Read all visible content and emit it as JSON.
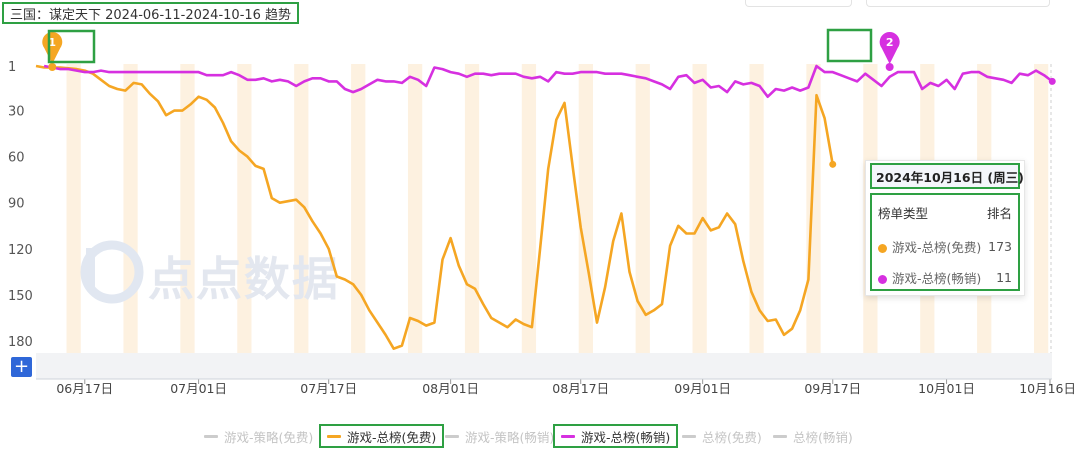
{
  "title": "三国：谋定天下 2024-06-11-2024-10-16 趋势",
  "watermark": "点点数据",
  "plus_label": "+",
  "markers": [
    {
      "label": "1",
      "date": "2024-06-13",
      "rank": 1,
      "color": "#f5a623"
    },
    {
      "label": "2",
      "date": "2024-09-24",
      "rank": 1,
      "color": "#d630e0"
    }
  ],
  "tooltip": {
    "date": "2024年10月16日 (周三)",
    "col_type": "榜单类型",
    "col_rank": "排名",
    "rows": [
      {
        "name": "游戏-总榜(免费)",
        "value": "173",
        "color": "#f5a623"
      },
      {
        "name": "游戏-总榜(畅销)",
        "value": "11",
        "color": "#d630e0"
      }
    ]
  },
  "legend": [
    {
      "name": "游戏-策略(免费)",
      "active": false,
      "color": "#cccccc"
    },
    {
      "name": "游戏-总榜(免费)",
      "active": true,
      "color": "#f5a623"
    },
    {
      "name": "游戏-策略(畅销)",
      "active": false,
      "color": "#cccccc"
    },
    {
      "name": "游戏-总榜(畅销)",
      "active": true,
      "color": "#d630e0"
    },
    {
      "name": "总榜(免费)",
      "active": false,
      "color": "#cccccc"
    },
    {
      "name": "总榜(畅销)",
      "active": false,
      "color": "#cccccc"
    }
  ],
  "chart_data": {
    "type": "line",
    "title": "三国：谋定天下 2024-06-11-2024-10-16 趋势",
    "xlabel": "",
    "ylabel": "",
    "x_start": "2024-06-11",
    "x_end": "2024-10-16",
    "x_ticks": [
      "06月17日",
      "07月01日",
      "07月17日",
      "08月01日",
      "08月17日",
      "09月01日",
      "09月17日",
      "10月01日",
      "10月16日"
    ],
    "y_ticks": [
      "1",
      "30",
      "60",
      "90",
      "120",
      "150",
      "180"
    ],
    "y_inverted": true,
    "ylim": [
      1,
      180
    ],
    "grid": false,
    "weekend_shading": true,
    "legend_position": "bottom",
    "series": [
      {
        "name": "游戏-总榜(免费)",
        "color": "#f5a623",
        "values": [
          [
            0,
            1
          ],
          [
            1,
            2
          ],
          [
            3,
            2
          ],
          [
            5,
            3
          ],
          [
            6,
            4
          ],
          [
            7,
            6
          ],
          [
            8,
            10
          ],
          [
            9,
            14
          ],
          [
            10,
            16
          ],
          [
            11,
            17
          ],
          [
            12,
            12
          ],
          [
            13,
            13
          ],
          [
            14,
            19
          ],
          [
            15,
            24
          ],
          [
            16,
            33
          ],
          [
            17,
            30
          ],
          [
            18,
            30
          ],
          [
            19,
            26
          ],
          [
            20,
            21
          ],
          [
            21,
            23
          ],
          [
            22,
            28
          ],
          [
            23,
            38
          ],
          [
            24,
            50
          ],
          [
            25,
            56
          ],
          [
            26,
            60
          ],
          [
            27,
            66
          ],
          [
            28,
            68
          ],
          [
            29,
            87
          ],
          [
            30,
            90
          ],
          [
            31,
            89
          ],
          [
            32,
            88
          ],
          [
            33,
            93
          ],
          [
            34,
            102
          ],
          [
            35,
            110
          ],
          [
            36,
            120
          ],
          [
            37,
            138
          ],
          [
            38,
            140
          ],
          [
            39,
            143
          ],
          [
            40,
            150
          ],
          [
            41,
            160
          ],
          [
            42,
            168
          ],
          [
            43,
            176
          ],
          [
            44,
            185
          ],
          [
            45,
            183
          ],
          [
            46,
            165
          ],
          [
            47,
            167
          ],
          [
            48,
            170
          ],
          [
            49,
            168
          ],
          [
            50,
            127
          ],
          [
            51,
            113
          ],
          [
            52,
            131
          ],
          [
            53,
            143
          ],
          [
            54,
            146
          ],
          [
            55,
            156
          ],
          [
            56,
            165
          ],
          [
            57,
            168
          ],
          [
            58,
            171
          ],
          [
            59,
            166
          ],
          [
            60,
            169
          ],
          [
            61,
            171
          ],
          [
            62,
            120
          ],
          [
            63,
            68
          ],
          [
            64,
            36
          ],
          [
            65,
            25
          ],
          [
            66,
            66
          ],
          [
            67,
            106
          ],
          [
            68,
            136
          ],
          [
            69,
            168
          ],
          [
            70,
            145
          ],
          [
            71,
            115
          ],
          [
            72,
            97
          ],
          [
            73,
            135
          ],
          [
            74,
            154
          ],
          [
            75,
            163
          ],
          [
            76,
            160
          ],
          [
            77,
            156
          ],
          [
            78,
            118
          ],
          [
            79,
            105
          ],
          [
            80,
            110
          ],
          [
            81,
            110
          ],
          [
            82,
            100
          ],
          [
            83,
            108
          ],
          [
            84,
            106
          ],
          [
            85,
            97
          ],
          [
            86,
            104
          ],
          [
            87,
            128
          ],
          [
            88,
            148
          ],
          [
            89,
            160
          ],
          [
            90,
            167
          ],
          [
            91,
            166
          ],
          [
            92,
            176
          ],
          [
            93,
            172
          ],
          [
            94,
            160
          ],
          [
            95,
            140
          ],
          [
            96,
            20
          ],
          [
            97,
            35
          ],
          [
            98,
            65
          ]
        ]
      },
      {
        "name": "游戏-总榜(畅销)",
        "color": "#d630e0",
        "values": [
          [
            1,
            1
          ],
          [
            2,
            2
          ],
          [
            3,
            3
          ],
          [
            4,
            3
          ],
          [
            5,
            4
          ],
          [
            6,
            5
          ],
          [
            7,
            5
          ],
          [
            8,
            4
          ],
          [
            9,
            5
          ],
          [
            10,
            5
          ],
          [
            11,
            5
          ],
          [
            12,
            5
          ],
          [
            13,
            5
          ],
          [
            14,
            5
          ],
          [
            15,
            5
          ],
          [
            16,
            5
          ],
          [
            17,
            5
          ],
          [
            18,
            5
          ],
          [
            19,
            5
          ],
          [
            20,
            5
          ],
          [
            21,
            7
          ],
          [
            22,
            7
          ],
          [
            23,
            7
          ],
          [
            24,
            5
          ],
          [
            25,
            7
          ],
          [
            26,
            10
          ],
          [
            27,
            10
          ],
          [
            28,
            9
          ],
          [
            29,
            11
          ],
          [
            30,
            10
          ],
          [
            31,
            11
          ],
          [
            32,
            14
          ],
          [
            33,
            11
          ],
          [
            34,
            9
          ],
          [
            35,
            9
          ],
          [
            36,
            11
          ],
          [
            37,
            11
          ],
          [
            38,
            16
          ],
          [
            39,
            18
          ],
          [
            40,
            16
          ],
          [
            41,
            13
          ],
          [
            42,
            10
          ],
          [
            43,
            11
          ],
          [
            44,
            11
          ],
          [
            45,
            12
          ],
          [
            46,
            8
          ],
          [
            47,
            10
          ],
          [
            48,
            14
          ],
          [
            49,
            2
          ],
          [
            50,
            3
          ],
          [
            51,
            5
          ],
          [
            52,
            6
          ],
          [
            53,
            8
          ],
          [
            54,
            6
          ],
          [
            55,
            6
          ],
          [
            56,
            7
          ],
          [
            57,
            6
          ],
          [
            58,
            6
          ],
          [
            59,
            6
          ],
          [
            60,
            8
          ],
          [
            61,
            9
          ],
          [
            62,
            8
          ],
          [
            63,
            11
          ],
          [
            64,
            5
          ],
          [
            65,
            6
          ],
          [
            66,
            6
          ],
          [
            67,
            5
          ],
          [
            68,
            5
          ],
          [
            69,
            5
          ],
          [
            70,
            6
          ],
          [
            71,
            6
          ],
          [
            72,
            6
          ],
          [
            73,
            7
          ],
          [
            74,
            8
          ],
          [
            75,
            9
          ],
          [
            76,
            11
          ],
          [
            77,
            13
          ],
          [
            78,
            16
          ],
          [
            79,
            8
          ],
          [
            80,
            7
          ],
          [
            81,
            12
          ],
          [
            82,
            10
          ],
          [
            83,
            15
          ],
          [
            84,
            14
          ],
          [
            85,
            18
          ],
          [
            86,
            11
          ],
          [
            87,
            13
          ],
          [
            88,
            12
          ],
          [
            89,
            14
          ],
          [
            90,
            21
          ],
          [
            91,
            16
          ],
          [
            92,
            17
          ],
          [
            93,
            15
          ],
          [
            94,
            17
          ],
          [
            95,
            15
          ],
          [
            96,
            1
          ],
          [
            97,
            5
          ],
          [
            98,
            5
          ],
          [
            99,
            7
          ],
          [
            100,
            9
          ],
          [
            101,
            11
          ],
          [
            102,
            6
          ],
          [
            103,
            10
          ],
          [
            104,
            14
          ],
          [
            105,
            8
          ],
          [
            106,
            5
          ],
          [
            107,
            5
          ],
          [
            108,
            5
          ],
          [
            109,
            16
          ],
          [
            110,
            12
          ],
          [
            111,
            14
          ],
          [
            112,
            10
          ],
          [
            113,
            16
          ],
          [
            114,
            6
          ],
          [
            115,
            5
          ],
          [
            116,
            5
          ],
          [
            117,
            8
          ],
          [
            118,
            9
          ],
          [
            119,
            10
          ],
          [
            120,
            12
          ],
          [
            121,
            6
          ],
          [
            122,
            7
          ],
          [
            123,
            4
          ],
          [
            124,
            7
          ],
          [
            125,
            11
          ]
        ]
      }
    ]
  }
}
